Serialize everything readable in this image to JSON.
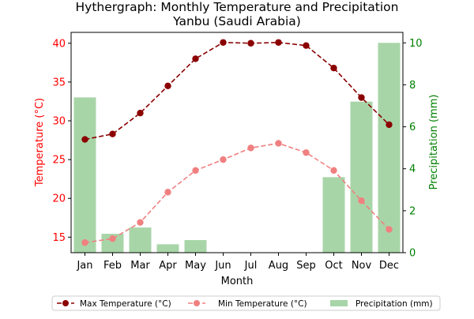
{
  "chart_data": {
    "type": "bar",
    "title_line1": "Hythergraph: Monthly Temperature and Precipitation",
    "title_line2": "Yanbu (Saudi Arabia)",
    "xlabel": "Month",
    "ylabel_left": "Temperature (°C)",
    "ylabel_right": "Precipitation (mm)",
    "categories": [
      "Jan",
      "Feb",
      "Mar",
      "Apr",
      "May",
      "Jun",
      "Jul",
      "Aug",
      "Sep",
      "Oct",
      "Nov",
      "Dec"
    ],
    "ylim_left": [
      13,
      41.4
    ],
    "ylim_right": [
      0,
      10.5
    ],
    "yticks_left": [
      15,
      20,
      25,
      30,
      35,
      40
    ],
    "yticks_right": [
      0,
      2,
      4,
      6,
      8,
      10
    ],
    "series": [
      {
        "name": "Max Temperature (°C)",
        "kind": "line",
        "axis": "left",
        "color": "#8b0000",
        "linestyle": "dashed",
        "values": [
          27.6,
          28.3,
          31.0,
          34.5,
          38.0,
          40.1,
          40.0,
          40.1,
          39.7,
          36.8,
          33.0,
          29.5
        ]
      },
      {
        "name": "Min Temperature (°C)",
        "kind": "line",
        "axis": "left",
        "color": "#f08080",
        "linestyle": "dashed",
        "values": [
          14.3,
          14.8,
          16.9,
          20.8,
          23.6,
          25.0,
          26.5,
          27.1,
          25.9,
          23.6,
          19.7,
          16.0
        ]
      },
      {
        "name": "Precipitation (mm)",
        "kind": "bar",
        "axis": "right",
        "color": "#a8d5a8",
        "values": [
          7.4,
          0.9,
          1.2,
          0.4,
          0.6,
          0.0,
          0.0,
          0.0,
          0.0,
          3.6,
          7.2,
          10.0
        ]
      }
    ],
    "legend_placement": "bottom-center",
    "left_axis_color": "#ff0000",
    "right_axis_color": "#008000",
    "grid": false
  }
}
